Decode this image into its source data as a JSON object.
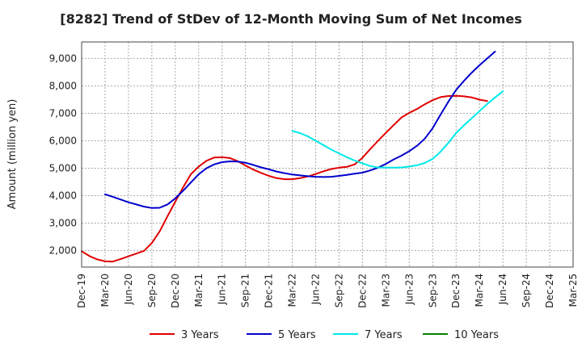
{
  "chart_data": {
    "type": "line",
    "title": "[8282]  Trend of StDev of 12-Month Moving Sum of Net Incomes",
    "xlabel": "",
    "ylabel": "Amount (million yen)",
    "x_tick_labels": [
      "Dec-19",
      "Mar-20",
      "Jun-20",
      "Sep-20",
      "Dec-20",
      "Mar-21",
      "Jun-21",
      "Sep-21",
      "Dec-21",
      "Mar-22",
      "Jun-22",
      "Sep-22",
      "Dec-22",
      "Mar-23",
      "Jun-23",
      "Sep-23",
      "Dec-23",
      "Mar-24",
      "Jun-24",
      "Sep-24",
      "Dec-24",
      "Mar-25"
    ],
    "y_ticks": [
      2000,
      3000,
      4000,
      5000,
      6000,
      7000,
      8000,
      9000
    ],
    "y_tick_labels": [
      "2,000",
      "3,000",
      "4,000",
      "5,000",
      "6,000",
      "7,000",
      "8,000",
      "9,000"
    ],
    "ylim": [
      1400,
      9600
    ],
    "grid": true,
    "legend_position": "bottom",
    "series": [
      {
        "name": "3 Years",
        "color": "#e00000",
        "start_index": 0,
        "values": [
          1980,
          1800,
          1680,
          1610,
          1600,
          1690,
          1790,
          1890,
          1990,
          2280,
          2700,
          3250,
          3780,
          4300,
          4780,
          5060,
          5270,
          5390,
          5400,
          5370,
          5260,
          5100,
          4950,
          4830,
          4720,
          4640,
          4600,
          4600,
          4640,
          4700,
          4790,
          4890,
          4970,
          5020,
          5050,
          5140,
          5380,
          5700,
          6000,
          6290,
          6570,
          6850,
          7020,
          7160,
          7330,
          7480,
          7590,
          7630,
          7640,
          7620,
          7580,
          7500,
          7450
        ]
      },
      {
        "name": "5 Years",
        "color": "#0000cc",
        "start_index": 3,
        "values": [
          4050,
          3960,
          3860,
          3760,
          3680,
          3600,
          3550,
          3560,
          3680,
          3900,
          4180,
          4480,
          4780,
          5000,
          5140,
          5220,
          5250,
          5240,
          5200,
          5120,
          5030,
          4960,
          4880,
          4820,
          4770,
          4740,
          4710,
          4690,
          4680,
          4690,
          4720,
          4760,
          4800,
          4840,
          4920,
          5020,
          5160,
          5320,
          5460,
          5620,
          5820,
          6080,
          6460,
          6950,
          7420,
          7850,
          8180,
          8480,
          8750,
          9000,
          9250
        ]
      },
      {
        "name": "7 Years",
        "color": "#00e8e8",
        "start_index": 27,
        "values": [
          6360,
          6280,
          6160,
          6000,
          5840,
          5680,
          5540,
          5400,
          5280,
          5180,
          5080,
          5030,
          5020,
          5020,
          5030,
          5060,
          5110,
          5190,
          5340,
          5600,
          5920,
          6280,
          6560,
          6820,
          7080,
          7340,
          7580,
          7800
        ]
      },
      {
        "name": "10 Years",
        "color": "#008000",
        "start_index": 0,
        "values": []
      }
    ]
  }
}
